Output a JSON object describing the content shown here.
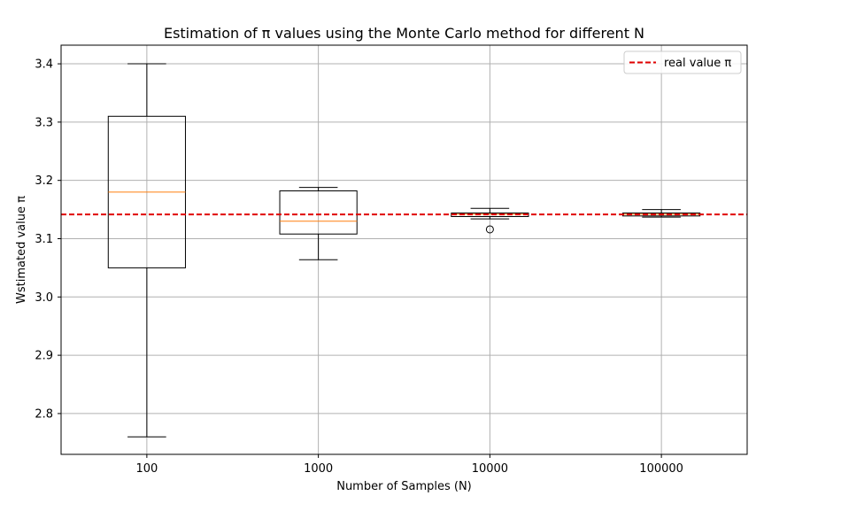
{
  "chart_data": {
    "type": "box",
    "title": "Estimation of π values using the Monte Carlo method for different N",
    "xlabel": "Number of Samples (N)",
    "ylabel": "Wstimated value π",
    "categories": [
      "100",
      "1000",
      "10000",
      "100000"
    ],
    "ylim": [
      2.73,
      3.432
    ],
    "y_ticks": [
      2.8,
      2.9,
      3.0,
      3.1,
      3.2,
      3.3,
      3.4
    ],
    "y_tick_labels": [
      "2.8",
      "2.9",
      "3.0",
      "3.1",
      "3.2",
      "3.3",
      "3.4"
    ],
    "grid": true,
    "boxes": [
      {
        "category": "100",
        "whisker_low": 2.76,
        "q1": 3.05,
        "median": 3.18,
        "q3": 3.31,
        "whisker_high": 3.4,
        "outliers": []
      },
      {
        "category": "1000",
        "whisker_low": 3.064,
        "q1": 3.108,
        "median": 3.13,
        "q3": 3.182,
        "whisker_high": 3.188,
        "outliers": []
      },
      {
        "category": "10000",
        "whisker_low": 3.134,
        "q1": 3.138,
        "median": 3.142,
        "q3": 3.144,
        "whisker_high": 3.152,
        "outliers": [
          3.116
        ]
      },
      {
        "category": "100000",
        "whisker_low": 3.137,
        "q1": 3.139,
        "median": 3.142,
        "q3": 3.144,
        "whisker_high": 3.15,
        "outliers": []
      }
    ],
    "reference_line": {
      "value": 3.14159,
      "label": "real value π",
      "color": "#e00000",
      "style": "dashed"
    },
    "legend": {
      "position": "top-right",
      "entries": [
        "real value π"
      ]
    },
    "colors": {
      "box": "#000000",
      "median": "#ff7f0e",
      "grid": "#b0b0b0",
      "reference": "#e00000"
    }
  }
}
